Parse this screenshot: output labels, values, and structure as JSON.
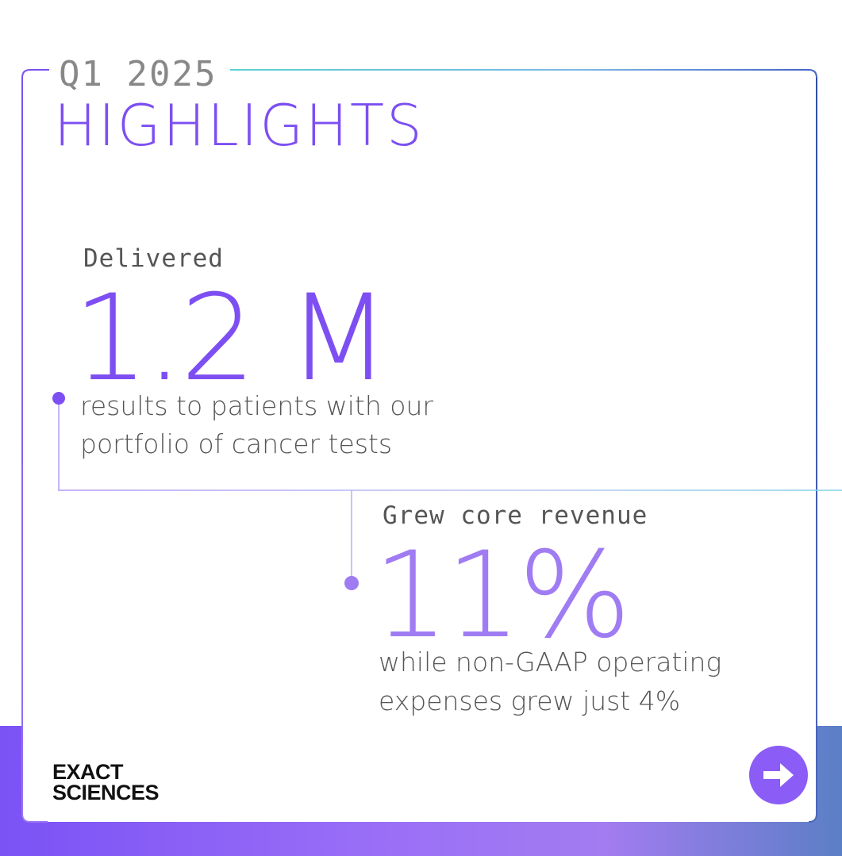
{
  "header": {
    "quarter": "Q1 2025",
    "title": "HIGHLIGHTS"
  },
  "stat1": {
    "label": "Delivered",
    "value": "1.2 M",
    "desc_line1": "results to patients with our",
    "desc_line2": "portfolio of cancer tests"
  },
  "stat2": {
    "label": "Grew core revenue",
    "value": "11%",
    "desc_line1": "while non-GAAP operating",
    "desc_line2": "expenses grew just 4%"
  },
  "brand": {
    "line1": "EXACT",
    "line2": "SCIENCES"
  },
  "colors": {
    "primary_purple": "#7d4ff2",
    "light_purple": "#a07cf3",
    "accent_teal": "#5ccfd0",
    "text_gray": "#555555"
  },
  "icons": {
    "next": "arrow-right-icon"
  }
}
